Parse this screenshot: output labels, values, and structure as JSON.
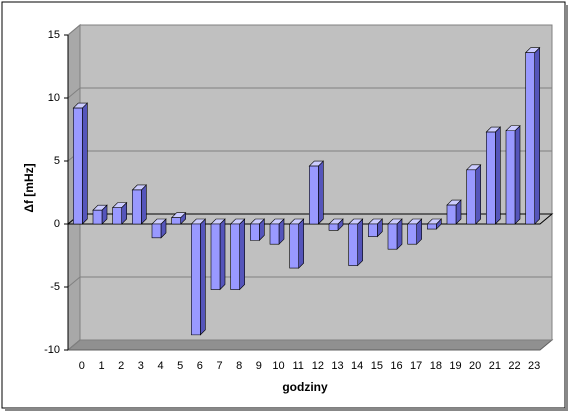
{
  "chart_data": {
    "type": "bar3d",
    "x_label": "godziny",
    "y_label": "Δf [mHz]",
    "categories": [
      "0",
      "1",
      "2",
      "3",
      "4",
      "5",
      "6",
      "7",
      "8",
      "9",
      "10",
      "11",
      "12",
      "13",
      "14",
      "15",
      "16",
      "17",
      "18",
      "19",
      "20",
      "21",
      "22",
      "23"
    ],
    "values": [
      9.2,
      1.1,
      1.3,
      2.7,
      -1.1,
      0.5,
      -8.8,
      -5.2,
      -5.2,
      -1.3,
      -1.6,
      -3.5,
      4.6,
      -0.5,
      -3.3,
      -1.0,
      -2.0,
      -1.6,
      -0.4,
      1.5,
      4.3,
      7.3,
      7.4,
      13.6
    ],
    "color": "#9999ff",
    "ylim": [
      -10,
      15
    ],
    "yticks": [
      -10,
      -5,
      0,
      5,
      10,
      15
    ],
    "grid": true
  }
}
